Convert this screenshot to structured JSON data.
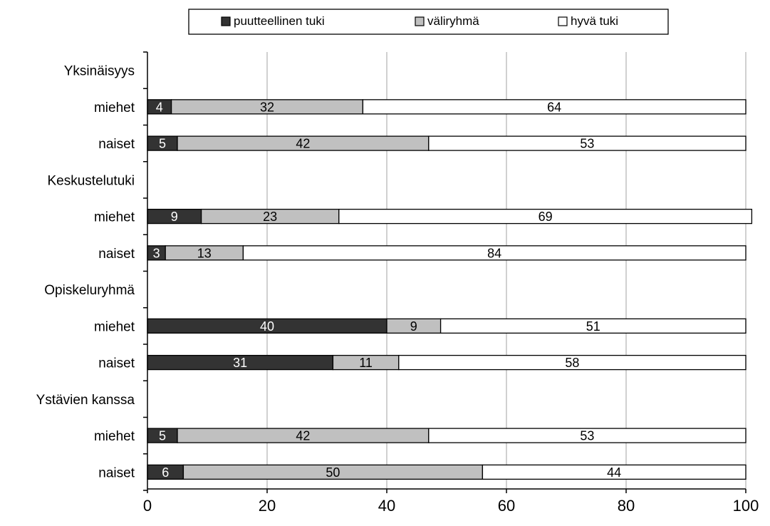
{
  "chart_data": {
    "type": "bar",
    "stacked": true,
    "orientation": "horizontal",
    "legend_position": "top",
    "grid": true,
    "xlim": [
      0,
      100
    ],
    "x_ticks": [
      "0",
      "20",
      "40",
      "60",
      "80",
      "100"
    ],
    "legend": [
      {
        "name": "puutteellinen tuki",
        "color": "#333333"
      },
      {
        "name": "väliryhmä",
        "color": "#c0c0c0"
      },
      {
        "name": "hyvä tuki",
        "color": "#ffffff"
      }
    ],
    "rows": [
      {
        "label": "Yksinäisyys",
        "kind": "group"
      },
      {
        "label": "miehet",
        "kind": "bar",
        "values": [
          4,
          32,
          64
        ]
      },
      {
        "label": "naiset",
        "kind": "bar",
        "values": [
          5,
          42,
          53
        ]
      },
      {
        "label": "Keskustelutuki",
        "kind": "group"
      },
      {
        "label": "miehet",
        "kind": "bar",
        "values": [
          9,
          23,
          69
        ]
      },
      {
        "label": "naiset",
        "kind": "bar",
        "values": [
          3,
          13,
          84
        ]
      },
      {
        "label": "Opiskeluryhmä",
        "kind": "group"
      },
      {
        "label": "miehet",
        "kind": "bar",
        "values": [
          40,
          9,
          51
        ]
      },
      {
        "label": "naiset",
        "kind": "bar",
        "values": [
          31,
          11,
          58
        ]
      },
      {
        "label": "Ystävien kanssa",
        "kind": "group"
      },
      {
        "label": "miehet",
        "kind": "bar",
        "values": [
          5,
          42,
          53
        ]
      },
      {
        "label": "naiset",
        "kind": "bar",
        "values": [
          6,
          50,
          44
        ]
      }
    ]
  }
}
